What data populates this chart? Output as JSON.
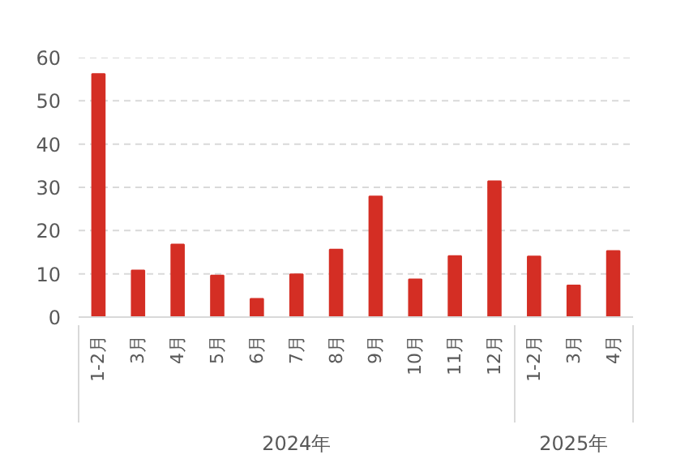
{
  "chart_data": {
    "type": "bar",
    "categories": [
      "1-2月",
      "3月",
      "4月",
      "5月",
      "6月",
      "7月",
      "8月",
      "9月",
      "10月",
      "11月",
      "12月",
      "1-2月",
      "3月",
      "4月"
    ],
    "values": [
      56.2,
      10.8,
      16.8,
      9.6,
      4.2,
      9.9,
      15.6,
      27.9,
      8.7,
      14.1,
      31.4,
      14.0,
      7.3,
      15.3
    ],
    "color": "#d42e24",
    "ylim": [
      0,
      60
    ],
    "yticks": [
      0,
      10,
      20,
      30,
      40,
      50,
      60
    ],
    "grid": "y",
    "annotations": [
      "2024年",
      "2025年"
    ]
  }
}
